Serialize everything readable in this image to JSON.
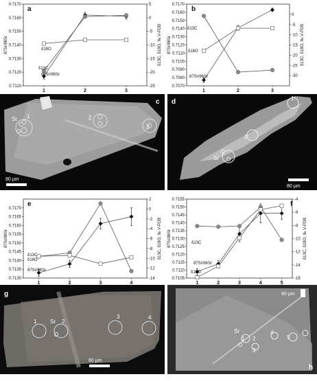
{
  "chart_data": [
    {
      "panel": "a",
      "type": "line",
      "x": [
        "1",
        "2",
        "3"
      ],
      "ylabel_left": "87Sr/86Sr",
      "ylim_left": [
        0.711,
        0.717
      ],
      "yticks_left": [
        "0.7110",
        "0.7120",
        "0.7130",
        "0.7140",
        "0.7150",
        "0.7160",
        "0.7170"
      ],
      "ylabel_right": "δ13C, δ18O, ‰ V-PDB",
      "ylim_right": [
        -25,
        5
      ],
      "yticks_right": [
        "5",
        "0",
        "-5",
        "-10",
        "-15",
        "-20",
        "-25"
      ],
      "series": [
        {
          "name": "87Sr/86Sr",
          "axis": "left",
          "marker": "diamond",
          "values": [
            0.7117,
            0.7162,
            0.7161
          ],
          "err": [
            0.0002,
            0.0002,
            0.0002
          ]
        },
        {
          "name": "δ13C",
          "axis": "right",
          "marker": "circle",
          "values": [
            -19.5,
            0.4,
            0.9
          ]
        },
        {
          "name": "δ18O",
          "axis": "right",
          "marker": "square",
          "values": [
            -9.5,
            -8.1,
            -8.1
          ]
        }
      ],
      "labels": {
        "s1": "87Sr/86Sr",
        "s2": "δ13C",
        "s3": "δ18O"
      }
    },
    {
      "panel": "b",
      "type": "line",
      "x": [
        "1",
        "2",
        "3"
      ],
      "ylabel_left": "87Sr/86Sr",
      "ylim_left": [
        0.707,
        0.717
      ],
      "yticks_left": [
        "0.7070",
        "0.7080",
        "0.7090",
        "0.7100",
        "0.7110",
        "0.7120",
        "0.7130",
        "0.7140",
        "0.7150",
        "0.7160",
        "0.7170"
      ],
      "ylabel_right": "δ13C, δ18O, ‰ V-PDB",
      "ylim_right": [
        -35,
        5
      ],
      "yticks_right": [
        "0",
        "-5",
        "-10",
        "-15",
        "-20",
        "-25",
        "-30"
      ],
      "series": [
        {
          "name": "87Sr/86Sr",
          "axis": "left",
          "marker": "diamond",
          "values": [
            0.7077,
            0.7141,
            0.7163
          ],
          "err": [
            0.0003,
            0.0003,
            0.0002
          ]
        },
        {
          "name": "δ13C",
          "axis": "right",
          "marker": "circle",
          "values": [
            -0.8,
            -28.3,
            -27.3
          ]
        },
        {
          "name": "δ18O",
          "axis": "right",
          "marker": "square",
          "values": [
            -17.8,
            -6.8,
            -6.8
          ]
        }
      ],
      "labels": {
        "s1": "87Sr/86Sr",
        "s2": "δ13C",
        "s3": "δ18O"
      }
    },
    {
      "panel": "e",
      "type": "line",
      "x": [
        "1",
        "2",
        "3",
        "4"
      ],
      "ylabel_left": "87Sr/86Sr",
      "ylim_left": [
        0.713,
        0.7175
      ],
      "yticks_left": [
        "0.7130",
        "0.7135",
        "0.7140",
        "0.7145",
        "0.7150",
        "0.7155",
        "0.7160",
        "0.7165",
        "0.7170"
      ],
      "ylabel_right": "δ13C, δ18O, ‰ V-PDB",
      "ylim_right": [
        -14,
        2
      ],
      "yticks_right": [
        "2",
        "0",
        "-2",
        "-4",
        "-6",
        "-8",
        "-10",
        "-12",
        "-14"
      ],
      "series": [
        {
          "name": "87Sr/86Sr",
          "axis": "left",
          "marker": "diamond",
          "values": [
            0.7133,
            0.7138,
            0.7161,
            0.7165
          ],
          "err": [
            0.0002,
            0.0002,
            0.0003,
            0.0005
          ]
        },
        {
          "name": "δ13C",
          "axis": "right",
          "marker": "circle",
          "values": [
            -9.6,
            -8.9,
            1.1,
            -12.6
          ]
        },
        {
          "name": "δ18O",
          "axis": "right",
          "marker": "square",
          "values": [
            -9.6,
            -9.4,
            -11.1,
            -9.8
          ]
        }
      ],
      "labels": {
        "s1": "87Sr/86Sr",
        "s2": "δ13C",
        "s3": "δ18O"
      }
    },
    {
      "panel": "f",
      "type": "line",
      "x": [
        "1",
        "2",
        "3",
        "4",
        "5"
      ],
      "ylabel_left": "87Sr/86Sr",
      "ylim_left": [
        0.7105,
        0.7155
      ],
      "yticks_left": [
        "0.7105",
        "0.7110",
        "0.7115",
        "0.7120",
        "0.7125",
        "0.7130",
        "0.7135",
        "0.7140",
        "0.7145",
        "0.7150",
        "0.7155"
      ],
      "ylabel_right": "δ13C, δ18O, ‰ V-PDB",
      "ylim_right": [
        -16,
        -4
      ],
      "yticks_right": [
        "-4",
        "-6",
        "-8",
        "-10",
        "-12",
        "-14",
        "-16"
      ],
      "series": [
        {
          "name": "87Sr/86Sr",
          "axis": "left",
          "marker": "diamond",
          "values": [
            0.7109,
            0.7114,
            0.7133,
            0.7146,
            0.7146
          ],
          "err": [
            0.0002,
            0.0002,
            0.0005,
            0.0006,
            0.0004
          ]
        },
        {
          "name": "δ13C",
          "axis": "right",
          "marker": "circle",
          "values": [
            -8.1,
            -8.2,
            -8.1,
            -5.2,
            -10.2
          ]
        },
        {
          "name": "δ18O",
          "axis": "right",
          "marker": "square",
          "values": [
            -15.9,
            -14.2,
            -9.9,
            -5.6,
            -5.0
          ]
        }
      ],
      "labels": {
        "s1": "87Sr/86Sr",
        "s2": "δ13C",
        "s3": "δ18O"
      }
    }
  ],
  "panels": {
    "a": "a",
    "b": "b",
    "c": "c",
    "d": "d",
    "e": "e",
    "f": "f",
    "g": "g",
    "h": "h"
  },
  "images": {
    "c": {
      "labels": [
        "Sr",
        "1",
        "C",
        "O",
        "2",
        "3"
      ],
      "scale": "80 µm"
    },
    "d": {
      "labels": [
        "1",
        "2",
        "Sr",
        "C",
        "O"
      ],
      "scale": "80 µm"
    },
    "g": {
      "labels": [
        "1",
        "Sr",
        "2",
        "O",
        "3",
        "4"
      ],
      "scale": "80 µm"
    },
    "h": {
      "labels": [
        "Sr",
        "1",
        "O",
        "2",
        "3",
        "4",
        "5"
      ],
      "scale": "80 µm"
    }
  },
  "colors": {
    "diamond": "#111111",
    "circle": "#8a8a8a",
    "square": "#ffffff",
    "line": "#555555"
  }
}
